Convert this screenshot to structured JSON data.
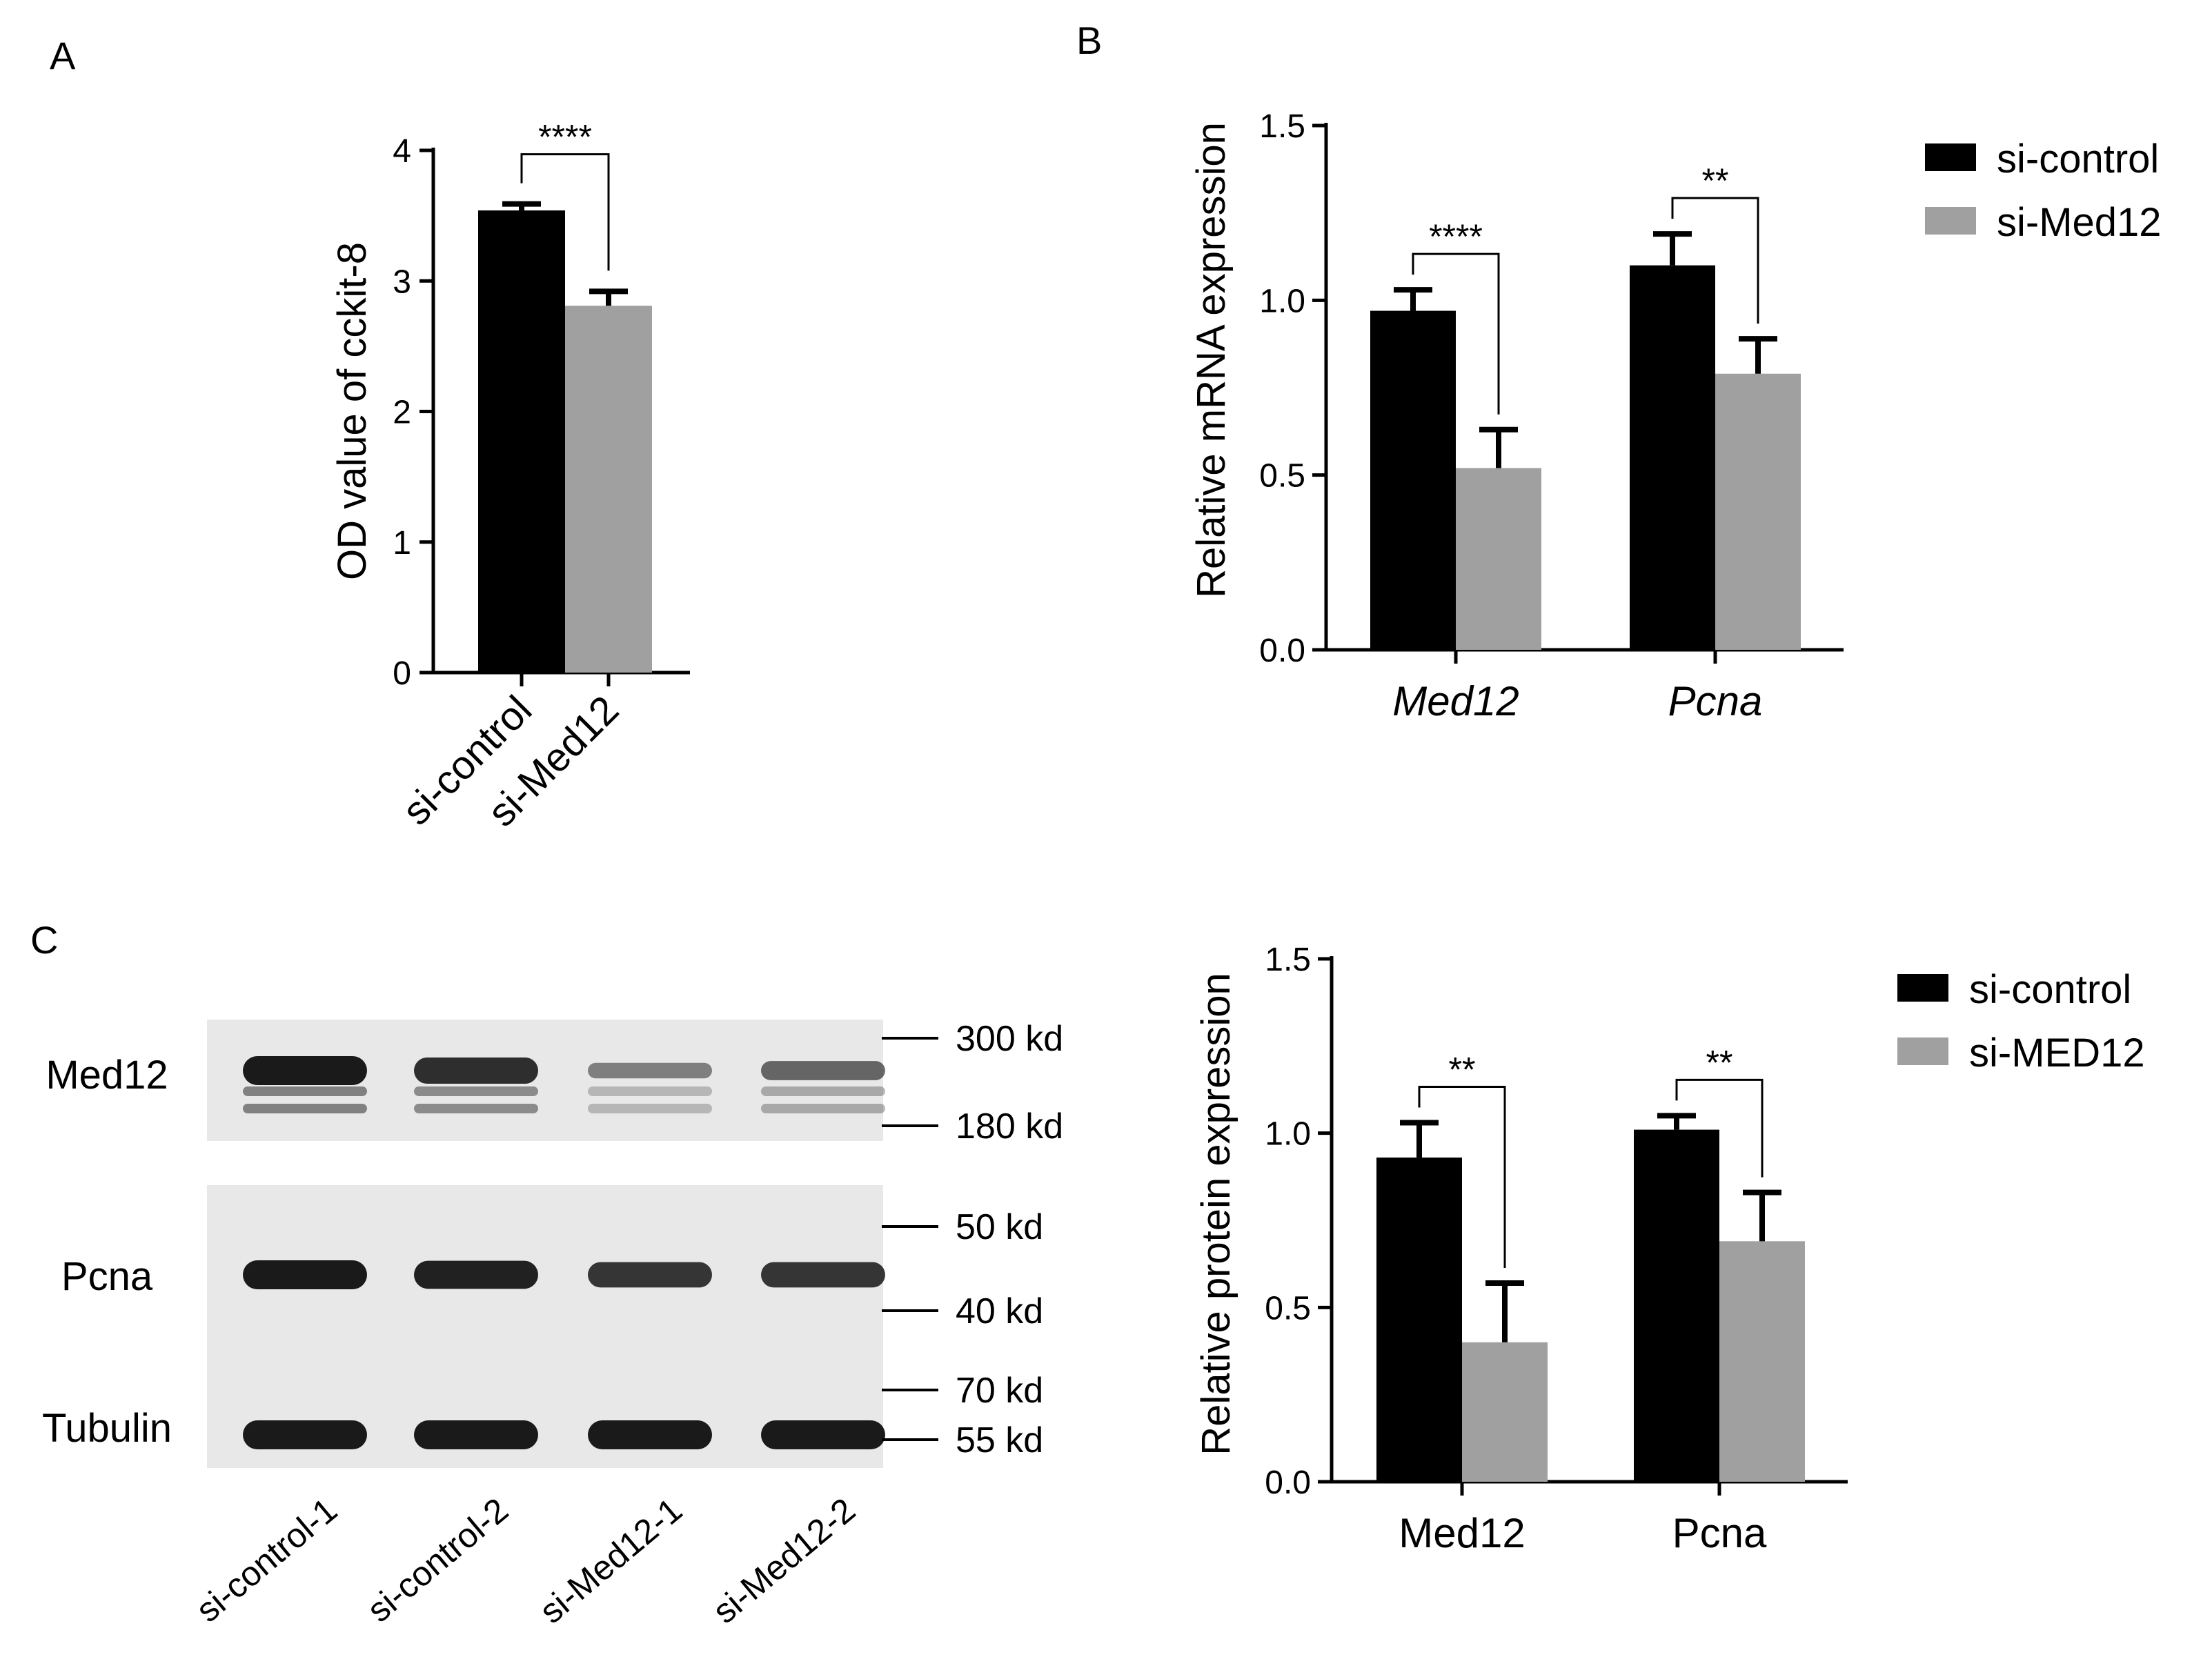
{
  "panel_labels": [
    "A",
    "B",
    "C"
  ],
  "colors": {
    "control": "#000000",
    "treated": "#a0a0a0",
    "blot_bg": "#e8e8e8",
    "band": "#1a1a1a"
  },
  "chart_data": [
    {
      "id": "A",
      "type": "bar",
      "categories": [
        "si-control",
        "si-Med12"
      ],
      "values": [
        3.54,
        2.81
      ],
      "errors": [
        0.05,
        0.11
      ],
      "colors": [
        "#000000",
        "#a0a0a0"
      ],
      "ylabel": "OD value of cckit-8",
      "ylim": [
        0,
        4
      ],
      "yticks": [
        "0",
        "1",
        "2",
        "3",
        "4"
      ],
      "significance": [
        {
          "between": [
            0,
            1
          ],
          "label": "****"
        }
      ]
    },
    {
      "id": "B",
      "type": "bar",
      "categories": [
        "Med12",
        "Pcna"
      ],
      "categories_italic": true,
      "series": [
        {
          "name": "si-control",
          "values": [
            0.97,
            1.1
          ],
          "errors": [
            0.06,
            0.09
          ]
        },
        {
          "name": "si-Med12",
          "values": [
            0.52,
            0.79
          ],
          "errors": [
            0.11,
            0.1
          ]
        }
      ],
      "ylabel": "Relative mRNA expression",
      "ylim": [
        0,
        1.5
      ],
      "yticks": [
        "0.0",
        "0.5",
        "1.0",
        "1.5"
      ],
      "legend": "top-right",
      "significance": [
        {
          "group": 0,
          "label": "****"
        },
        {
          "group": 1,
          "label": "**"
        }
      ]
    },
    {
      "id": "C",
      "type": "bar",
      "categories": [
        "Med12",
        "Pcna"
      ],
      "categories_italic": false,
      "series": [
        {
          "name": "si-control",
          "values": [
            0.93,
            1.01
          ],
          "errors": [
            0.1,
            0.04
          ]
        },
        {
          "name": "si-MED12",
          "values": [
            0.4,
            0.69
          ],
          "errors": [
            0.17,
            0.14
          ]
        }
      ],
      "ylabel": "Relative protein expression",
      "ylim": [
        0,
        1.5
      ],
      "yticks": [
        "0.0",
        "0.5",
        "1.0",
        "1.5"
      ],
      "legend": "top-right",
      "significance": [
        {
          "group": 0,
          "label": "**"
        },
        {
          "group": 1,
          "label": "**"
        }
      ]
    }
  ],
  "western_blot": {
    "rows": [
      {
        "protein": "Med12",
        "intensity": [
          1.0,
          0.85,
          0.25,
          0.45
        ],
        "markers": [
          "300 kd",
          "180 kd"
        ]
      },
      {
        "protein": "Pcna",
        "intensity": [
          1.0,
          0.95,
          0.8,
          0.8
        ],
        "markers": [
          "50 kd",
          "40 kd"
        ]
      },
      {
        "protein": "Tubulin",
        "intensity": [
          1.0,
          1.0,
          1.0,
          1.0
        ],
        "markers": [
          "70 kd",
          "55 kd"
        ]
      }
    ],
    "lanes": [
      "si-control-1",
      "si-control-2",
      "si-Med12-1",
      "si-Med12-2"
    ]
  }
}
